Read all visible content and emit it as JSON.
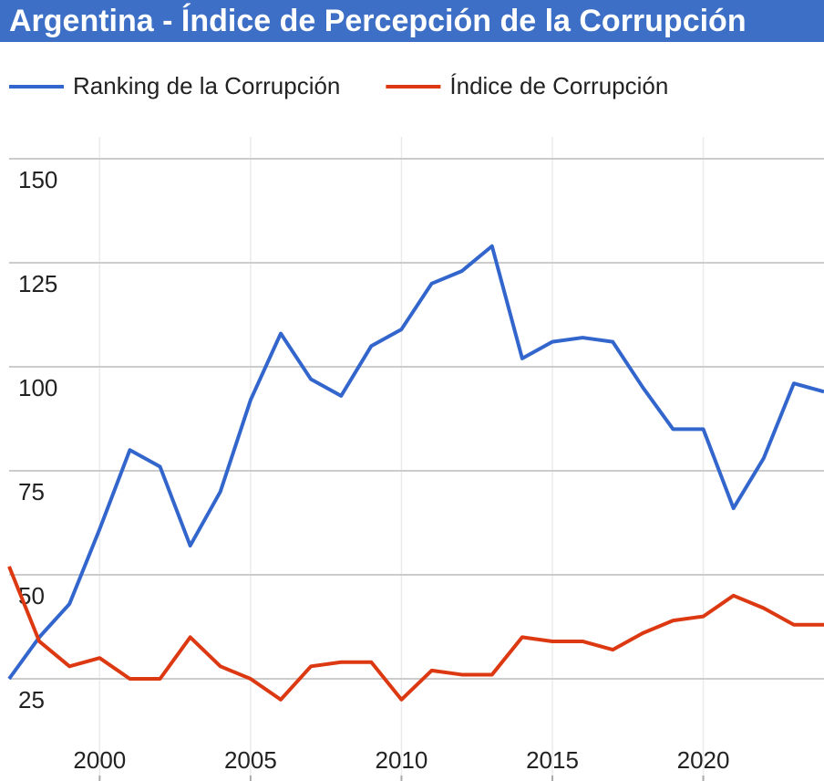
{
  "chart_data": {
    "type": "line",
    "title": "Argentina - Índice de Percepción de la Corrupción",
    "x": [
      1997,
      1998,
      1999,
      2000,
      2001,
      2002,
      2003,
      2004,
      2005,
      2006,
      2007,
      2008,
      2009,
      2010,
      2011,
      2012,
      2013,
      2014,
      2015,
      2016,
      2017,
      2018,
      2019,
      2020,
      2021,
      2022,
      2023,
      2024
    ],
    "series": [
      {
        "name": "Ranking de la Corrupción",
        "color": "#3366cc",
        "values": [
          25,
          35,
          43,
          61,
          80,
          76,
          57,
          70,
          92,
          108,
          97,
          93,
          105,
          109,
          120,
          123,
          129,
          102,
          106,
          107,
          106,
          95,
          85,
          85,
          66,
          78,
          96,
          94
        ]
      },
      {
        "name": "Índice de Corrupción",
        "color": "#dc3912",
        "values": [
          52,
          34,
          28,
          30,
          25,
          25,
          35,
          28,
          25,
          20,
          28,
          29,
          29,
          20,
          27,
          26,
          26,
          35,
          34,
          34,
          32,
          36,
          39,
          40,
          45,
          42,
          38,
          38
        ]
      }
    ],
    "xlim": [
      1997,
      2024
    ],
    "xticks": [
      2000,
      2005,
      2010,
      2015,
      2020
    ],
    "ylim": [
      10,
      160
    ],
    "yticks": [
      25,
      50,
      75,
      100,
      125,
      150
    ],
    "grid": true,
    "legend": "top"
  }
}
